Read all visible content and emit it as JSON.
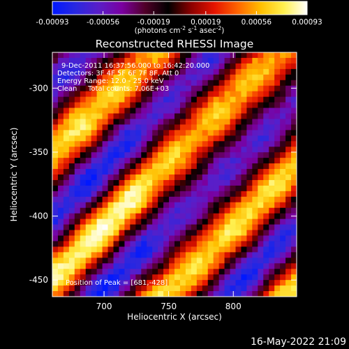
{
  "colorbar": {
    "ticks": [
      "-0.00093",
      "-0.00056",
      "-0.00019",
      "0.00019",
      "0.00056",
      "0.00093"
    ],
    "tick_values": [
      -0.00093,
      -0.00056,
      -0.00019,
      0.00019,
      0.00056,
      0.00093
    ],
    "range": [
      -0.00093,
      0.00093
    ],
    "unit_parts": [
      "(photons cm",
      "-2",
      " s",
      "-1",
      " asec",
      "-2",
      ")"
    ],
    "colormap": [
      "#0018ff",
      "#2828e0",
      "#5a1ec8",
      "#7a00a0",
      "#500028",
      "#000000",
      "#8c0000",
      "#e61400",
      "#ff6400",
      "#ffbe00",
      "#fff050",
      "#ffffff"
    ]
  },
  "chart_data": {
    "type": "heatmap",
    "title": "Reconstructed RHESSI Image",
    "xlabel": "Heliocentric X (arcsec)",
    "ylabel": "Heliocentric Y (arcsec)",
    "xlim": [
      660,
      849
    ],
    "ylim": [
      -463,
      -272
    ],
    "x_ticks": [
      "700",
      "750",
      "800"
    ],
    "x_tick_values": [
      700,
      750,
      800
    ],
    "y_ticks": [
      "-300",
      "-350",
      "-400",
      "-450"
    ],
    "y_tick_values": [
      -300,
      -350,
      -400,
      -450
    ],
    "fringe_period_arcsec": 70,
    "fringe_direction": "lower-left to upper-right",
    "peak": [
      681,
      -428
    ],
    "annotations": [
      "9-Dec-2011 16:37:56.000 to 16:42:20.000",
      "Detectors: 3F 4F 5F 6F 7F 8F, Att 0",
      "Energy Range: 12.0 - 25.0 keV",
      "Clean",
      "Total counts: 7.06E+03"
    ],
    "peak_label": "Position of Peak = [681,-428]"
  },
  "timestamp": "16-May-2022 21:09"
}
